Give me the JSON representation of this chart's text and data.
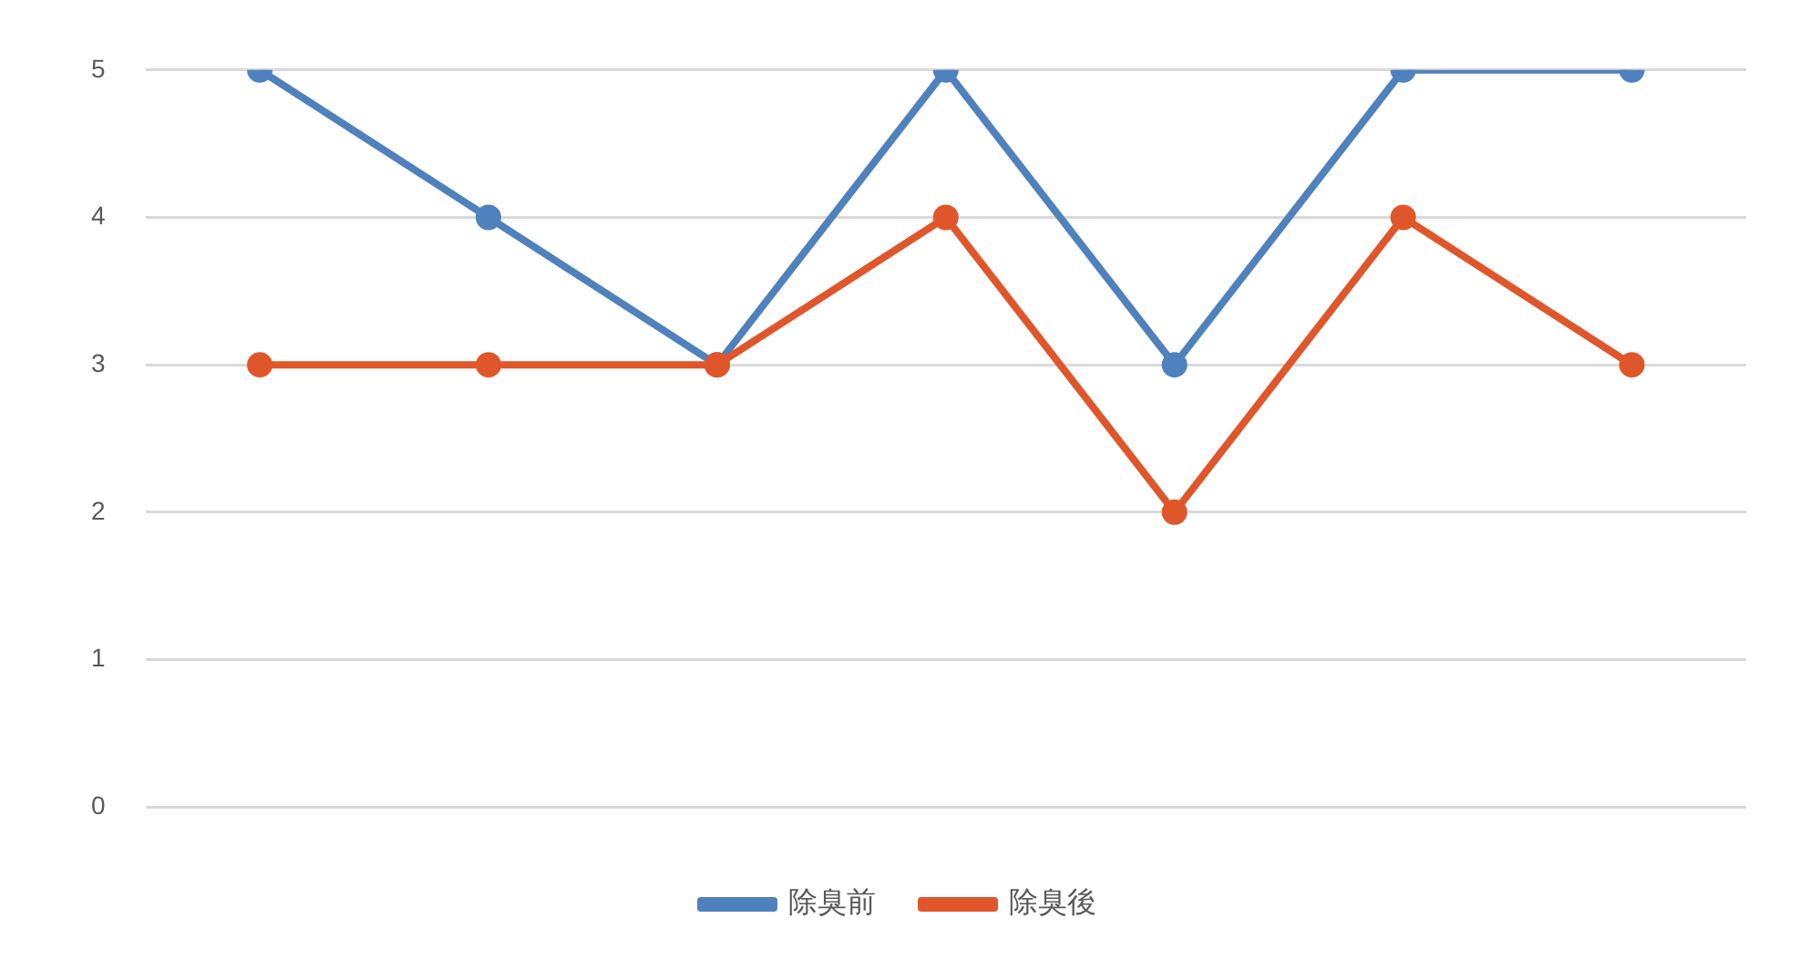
{
  "chart_data": {
    "type": "line",
    "categories": [
      null,
      null,
      null,
      null,
      null,
      null,
      null
    ],
    "series": [
      {
        "name": "除臭前",
        "color": "#4f81bd",
        "values": [
          5,
          4,
          3,
          5,
          3,
          5,
          5
        ]
      },
      {
        "name": "除臭後",
        "color": "#e0562b",
        "values": [
          3,
          3,
          3,
          4,
          2,
          4,
          3
        ]
      }
    ],
    "ylim": [
      0,
      5
    ],
    "yticks": [
      0,
      1,
      2,
      3,
      4,
      5
    ],
    "grid": "y",
    "legend": "bottom",
    "marker": "circle",
    "line_style": "solid"
  }
}
